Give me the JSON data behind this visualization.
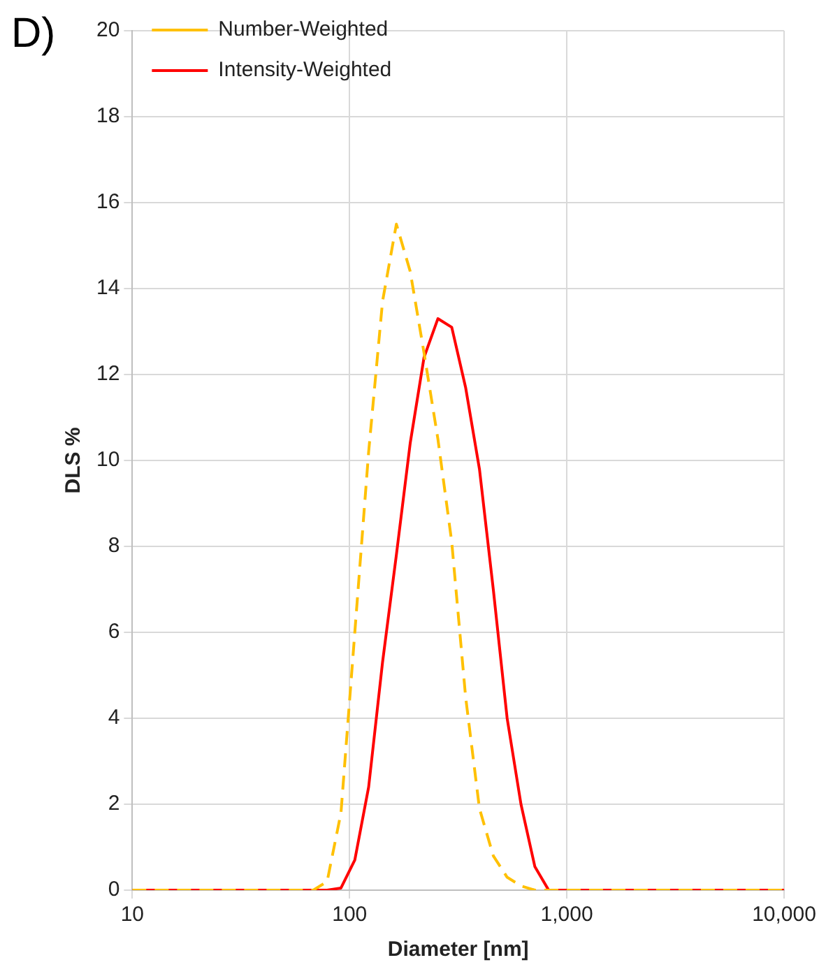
{
  "chart_data": {
    "type": "line",
    "title": "D)",
    "xlabel": "Diameter [nm]",
    "ylabel": "DLS %",
    "log": "x",
    "xlim": [
      10,
      10000
    ],
    "xticks": [
      10,
      100,
      {
        "value": 1000,
        "label": "1,000"
      },
      {
        "value": 10000,
        "label": "10,000"
      }
    ],
    "ylim": [
      0,
      20
    ],
    "yticks": [
      0,
      2,
      4,
      6,
      8,
      10,
      12,
      14,
      16,
      18,
      20
    ],
    "grid": true,
    "legend": "top left",
    "marker": "none",
    "series": [
      {
        "name": "Number-Weighted",
        "color": "#ffc000",
        "line_style": "dashed",
        "x": [
          10,
          68.06,
          78.82,
          91.28,
          105.7,
          122.4,
          141.8,
          164.2,
          190.1,
          220.2,
          255,
          295.3,
          342,
          396.1,
          458.7,
          531.2,
          615.1,
          712.4,
          10000
        ],
        "values": [
          0,
          0,
          0.2,
          1.8,
          6,
          10.2,
          13.7,
          15.5,
          14.4,
          12.5,
          10.5,
          8.1,
          4.5,
          1.9,
          0.8,
          0.3,
          0.1,
          0,
          0
        ]
      },
      {
        "name": "Intensity-Weighted",
        "color": "#ff0000",
        "line_style": "solid",
        "x": [
          10,
          78.82,
          91.28,
          105.7,
          122.4,
          141.8,
          164.2,
          190.1,
          220.2,
          255,
          295.3,
          342,
          396.1,
          458.7,
          531.2,
          615.1,
          712.4,
          825,
          10000
        ],
        "values": [
          0,
          0,
          0.05,
          0.7,
          2.4,
          5.3,
          7.8,
          10.4,
          12.4,
          13.3,
          13.1,
          11.7,
          9.8,
          7,
          4,
          2,
          0.55,
          0,
          0
        ]
      }
    ]
  }
}
